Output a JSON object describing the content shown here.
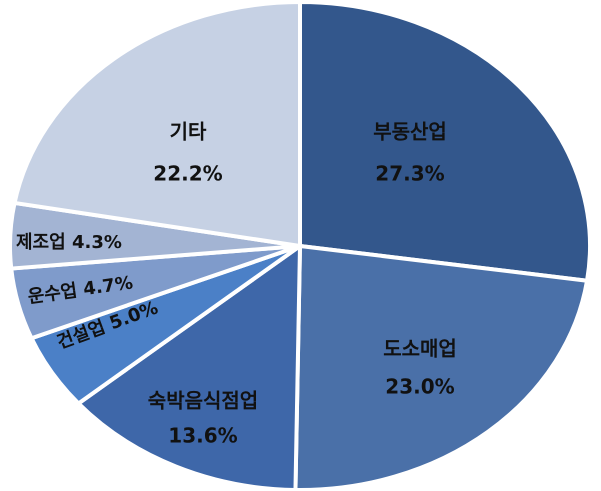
{
  "chart_data": {
    "type": "pie",
    "categories": [
      "부동산업",
      "도소매업",
      "숙박음식점업",
      "건설업",
      "운수업",
      "제조업",
      "기타"
    ],
    "values": [
      27.3,
      23.0,
      13.6,
      5.0,
      4.7,
      4.3,
      22.2
    ],
    "value_labels": [
      "27.3%",
      "23.0%",
      "13.6%",
      "5.0%",
      "4.7%",
      "4.3%",
      "22.2%"
    ],
    "colors": [
      "#33578c",
      "#4a70a8",
      "#3e67a9",
      "#4b80c7",
      "#7f9bcb",
      "#a3b4d3",
      "#c6d1e4"
    ]
  }
}
